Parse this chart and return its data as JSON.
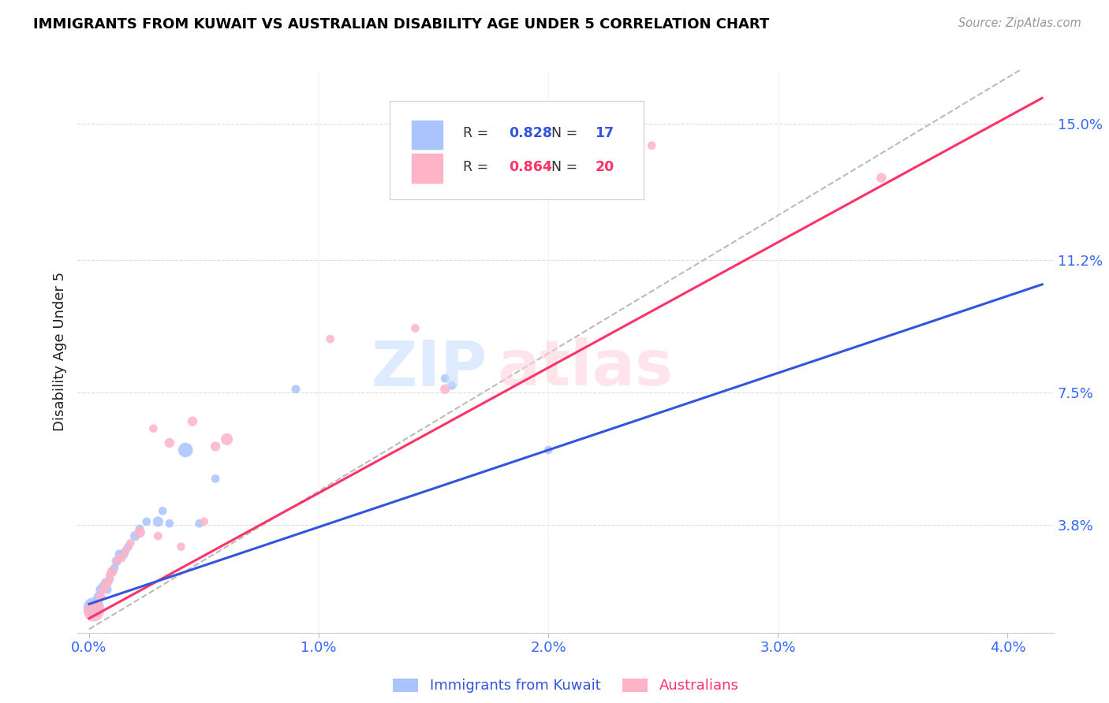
{
  "title": "IMMIGRANTS FROM KUWAIT VS AUSTRALIAN DISABILITY AGE UNDER 5 CORRELATION CHART",
  "source": "Source: ZipAtlas.com",
  "xlabel_ticks": [
    "0.0%",
    "1.0%",
    "2.0%",
    "3.0%",
    "4.0%"
  ],
  "xlabel_tick_vals": [
    0.0,
    1.0,
    2.0,
    3.0,
    4.0
  ],
  "ylabel_tick_vals": [
    3.8,
    7.5,
    11.2,
    15.0
  ],
  "ylabel_tick_labels": [
    "3.8%",
    "7.5%",
    "11.2%",
    "15.0%"
  ],
  "xlim": [
    -0.05,
    4.2
  ],
  "ylim": [
    0.8,
    16.5
  ],
  "blue_R": 0.828,
  "blue_N": 17,
  "pink_R": 0.864,
  "pink_N": 20,
  "legend_label_blue": "Immigrants from Kuwait",
  "legend_label_pink": "Australians",
  "blue_color": "#aac4ff",
  "pink_color": "#ffb3c6",
  "blue_line_color": "#3355dd",
  "pink_line_color": "#ff3366",
  "dash_color": "#bbbbbb",
  "blue_scatter": {
    "x": [
      0.02,
      0.04,
      0.05,
      0.06,
      0.07,
      0.08,
      0.09,
      0.1,
      0.11,
      0.12,
      0.13,
      0.15,
      0.17,
      0.2,
      0.22,
      0.25,
      0.3,
      0.32,
      0.35,
      0.42,
      0.48,
      0.55,
      0.9,
      1.55,
      1.58,
      2.0
    ],
    "y": [
      1.5,
      1.8,
      2.0,
      2.1,
      2.2,
      2.0,
      2.3,
      2.5,
      2.6,
      2.8,
      3.0,
      3.0,
      3.2,
      3.5,
      3.7,
      3.9,
      3.9,
      4.2,
      3.85,
      5.9,
      3.85,
      5.1,
      7.6,
      7.9,
      7.7,
      5.9
    ],
    "sizes": [
      350,
      80,
      80,
      60,
      60,
      60,
      60,
      80,
      60,
      80,
      60,
      80,
      60,
      80,
      60,
      60,
      90,
      60,
      60,
      180,
      60,
      60,
      60,
      60,
      60,
      60
    ]
  },
  "pink_scatter": {
    "x": [
      0.02,
      0.04,
      0.05,
      0.06,
      0.07,
      0.08,
      0.09,
      0.1,
      0.12,
      0.14,
      0.16,
      0.18,
      0.22,
      0.28,
      0.3,
      0.35,
      0.4,
      0.45,
      0.5,
      0.55,
      0.6,
      1.05,
      1.42,
      1.55,
      2.45,
      3.45
    ],
    "y": [
      1.4,
      1.6,
      1.8,
      2.0,
      2.1,
      2.2,
      2.4,
      2.5,
      2.8,
      2.9,
      3.1,
      3.3,
      3.6,
      6.5,
      3.5,
      6.1,
      3.2,
      6.7,
      3.9,
      6.0,
      6.2,
      9.0,
      9.3,
      7.6,
      14.4,
      13.5
    ],
    "sizes": [
      350,
      80,
      80,
      60,
      60,
      80,
      60,
      80,
      60,
      80,
      60,
      60,
      100,
      60,
      60,
      80,
      60,
      80,
      60,
      80,
      120,
      60,
      60,
      80,
      60,
      80
    ]
  },
  "blue_line_slope": 2.15,
  "blue_line_intercept": 1.6,
  "pink_line_slope": 3.5,
  "pink_line_intercept": 1.2,
  "dash_line_slope": 3.85,
  "dash_line_intercept": 0.9
}
